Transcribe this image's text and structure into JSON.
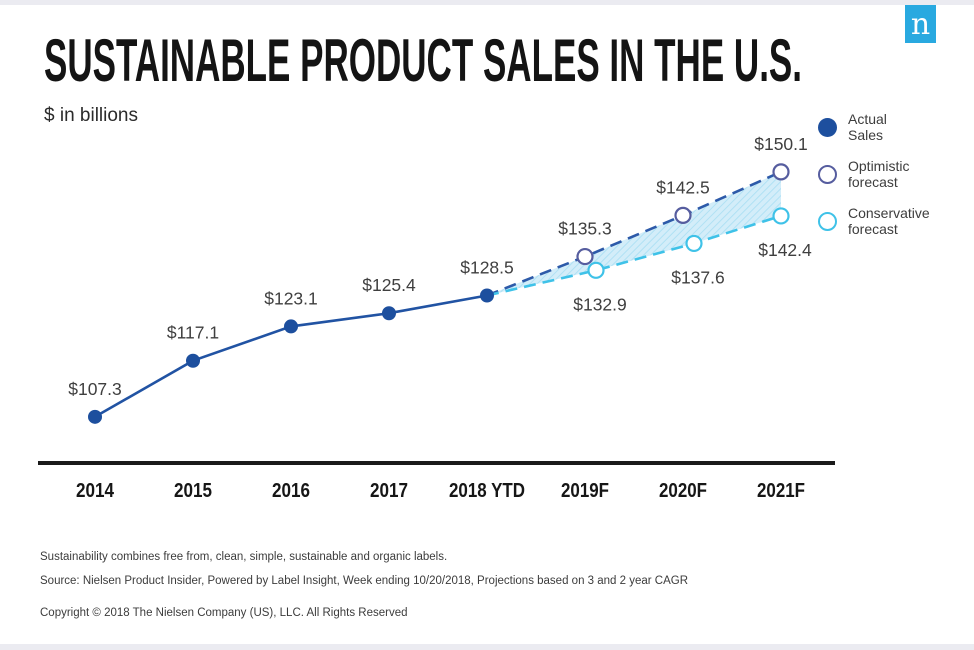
{
  "brand": {
    "logo_letter": "n"
  },
  "header": {
    "title": "SUSTAINABLE PRODUCT SALES IN THE U.S.",
    "subtitle": "$ in billions"
  },
  "legend": [
    {
      "line1": "Actual",
      "line2": "Sales"
    },
    {
      "line1": "Optimistic",
      "line2": "forecast"
    },
    {
      "line1": "Conservative",
      "line2": "forecast"
    }
  ],
  "chart_data": {
    "type": "line",
    "title": "SUSTAINABLE PRODUCT SALES IN THE U.S.",
    "ylabel": "$ in billions",
    "xlabel": "",
    "grid": false,
    "legend_position": "right",
    "ylim": [
      105,
      152
    ],
    "categories": [
      "2014",
      "2015",
      "2016",
      "2017",
      "2018 YTD",
      "2019F",
      "2020F",
      "2021F"
    ],
    "series": [
      {
        "name": "Actual Sales",
        "key": "actual",
        "start_index": 0,
        "values": [
          107.3,
          117.1,
          123.1,
          125.4,
          128.5
        ],
        "point_labels": [
          "$107.3",
          "$117.1",
          "$123.1",
          "$125.4",
          "$128.5"
        ]
      },
      {
        "name": "Optimistic forecast",
        "key": "optimistic",
        "start_index": 4,
        "values": [
          128.5,
          135.3,
          142.5,
          150.1
        ],
        "point_labels": [
          null,
          "$135.3",
          "$142.5",
          "$150.1"
        ]
      },
      {
        "name": "Conservative forecast",
        "key": "conservative",
        "start_index": 4,
        "values": [
          128.5,
          132.9,
          137.6,
          142.4
        ],
        "point_labels": [
          null,
          "$132.9",
          "$137.6",
          "$142.4"
        ]
      }
    ]
  },
  "colors": {
    "actual_line": "#2153a3",
    "actual_point": "#1d4f9e",
    "optimistic_line": "#2d5aa9",
    "optimistic_marker": "#565d9f",
    "conservative_line": "#3fc2e8",
    "band_fill": "#d3edf9",
    "band_hatch": "#b0e1f4",
    "axis": "#1a1a1a",
    "data_label": "#3f3f3f",
    "logo_bg": "#29a9e0"
  },
  "footer": {
    "note": "Sustainability combines free from, clean, simple, sustainable and organic labels.",
    "source": "Source: Nielsen Product Insider, Powered by Label Insight, Week ending 10/20/2018, Projections based on 3 and 2 year CAGR",
    "copyright": "Copyright © 2018 The Nielsen Company (US), LLC. All Rights Reserved"
  }
}
